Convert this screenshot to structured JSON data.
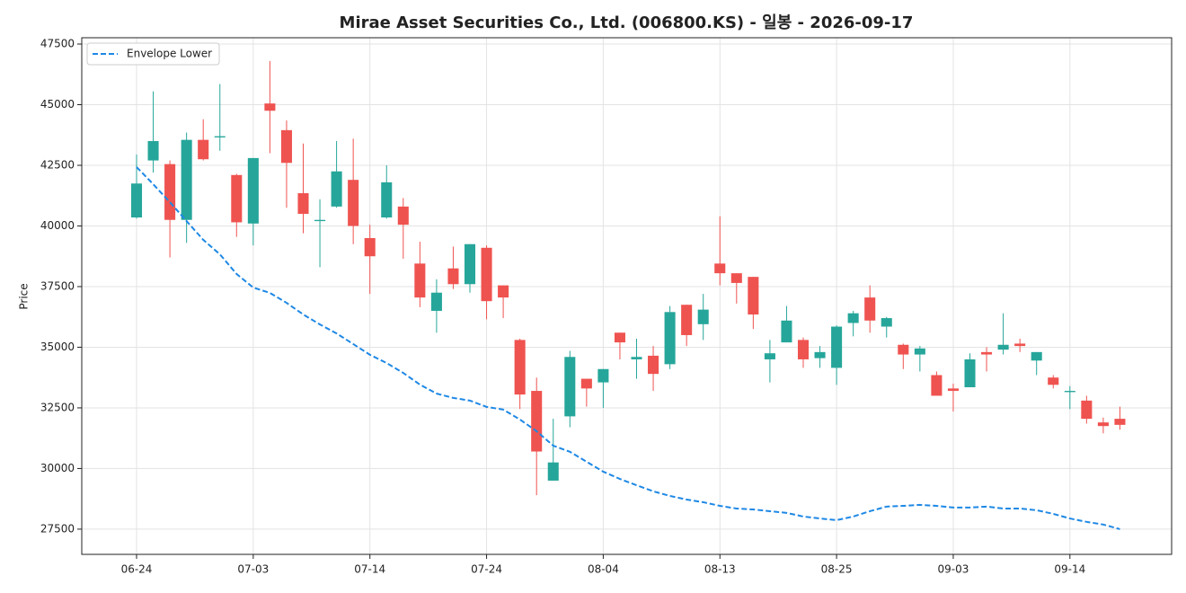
{
  "chart_data": {
    "type": "candlestick",
    "title": "Mirae Asset Securities Co., Ltd. (006800.KS) - 일봉 - 2026-09-17",
    "ylabel": "Price",
    "categories": [
      "06-24",
      null,
      null,
      null,
      null,
      null,
      null,
      "07-03",
      null,
      null,
      null,
      null,
      null,
      null,
      "07-14",
      null,
      null,
      null,
      null,
      null,
      null,
      "07-24",
      null,
      null,
      null,
      null,
      null,
      null,
      "08-04",
      null,
      null,
      null,
      null,
      null,
      null,
      "08-13",
      null,
      null,
      null,
      null,
      null,
      null,
      "08-25",
      null,
      null,
      null,
      null,
      null,
      null,
      "09-03",
      null,
      null,
      null,
      null,
      null,
      null,
      "09-14",
      null,
      null,
      null
    ],
    "open": [
      40350,
      42700,
      42550,
      40250,
      43550,
      43650,
      42100,
      40100,
      45050,
      43950,
      41350,
      40200,
      40800,
      41900,
      39500,
      40350,
      40800,
      38450,
      36500,
      38250,
      37600,
      39100,
      37550,
      35300,
      33200,
      29500,
      32150,
      33700,
      33550,
      35600,
      34500,
      34650,
      34300,
      36750,
      35950,
      38450,
      38050,
      37900,
      34500,
      35200,
      35300,
      34550,
      34150,
      36000,
      37050,
      35850,
      35100,
      34700,
      33850,
      33300,
      33350,
      34800,
      34900,
      35150,
      34450,
      33750,
      33150,
      32800,
      31900,
      32050
    ],
    "high": [
      42950,
      45550,
      42700,
      43850,
      44400,
      45850,
      42150,
      42800,
      46800,
      44350,
      43400,
      41100,
      43500,
      43600,
      40050,
      42500,
      41150,
      39350,
      37800,
      39150,
      39250,
      39200,
      37550,
      35350,
      33750,
      32050,
      34850,
      33700,
      34100,
      35600,
      35350,
      35050,
      36700,
      36750,
      37200,
      40400,
      38050,
      37900,
      35300,
      36700,
      35400,
      35050,
      35900,
      36500,
      37550,
      36250,
      35150,
      35050,
      34000,
      33500,
      34750,
      35000,
      36400,
      35350,
      34800,
      33850,
      33400,
      33000,
      32100,
      32550
    ],
    "low": [
      40300,
      42200,
      38700,
      39300,
      42700,
      43100,
      39550,
      39200,
      43000,
      40750,
      39700,
      38300,
      40750,
      39250,
      37200,
      40300,
      38650,
      36650,
      35600,
      37400,
      37250,
      36150,
      36200,
      32450,
      28900,
      29500,
      31700,
      32550,
      32500,
      34500,
      33700,
      33200,
      34100,
      35050,
      35300,
      37550,
      36800,
      35750,
      33550,
      35200,
      34150,
      34150,
      33450,
      35450,
      35600,
      35400,
      34100,
      34000,
      33000,
      32350,
      33350,
      34000,
      34700,
      34800,
      33850,
      33300,
      32450,
      31850,
      31450,
      31600
    ],
    "close": [
      41750,
      43500,
      40250,
      43550,
      42750,
      43700,
      40150,
      42800,
      44750,
      42600,
      40500,
      40250,
      42250,
      40000,
      38750,
      41800,
      40050,
      37050,
      37250,
      37600,
      39250,
      36900,
      37050,
      33050,
      30700,
      30250,
      34600,
      33300,
      34100,
      35200,
      34600,
      33900,
      36450,
      35500,
      36550,
      38050,
      37650,
      36350,
      34750,
      36100,
      34500,
      34800,
      35850,
      36400,
      36100,
      36200,
      34700,
      34950,
      33000,
      33200,
      34500,
      34700,
      35100,
      35050,
      34800,
      33450,
      33200,
      32050,
      31750,
      31800
    ],
    "up_color": "#26a69a",
    "down_color": "#ef5350",
    "series": [
      {
        "name": "Envelope Lower",
        "color": "#1e88e5",
        "style": "dashed",
        "values": [
          42430,
          41720,
          40980,
          40200,
          39430,
          38830,
          38020,
          37460,
          37240,
          36830,
          36350,
          35940,
          35570,
          35130,
          34690,
          34350,
          33940,
          33460,
          33090,
          32910,
          32800,
          32540,
          32430,
          32020,
          31540,
          30940,
          30690,
          30280,
          29870,
          29570,
          29310,
          29060,
          28870,
          28720,
          28610,
          28460,
          28350,
          28310,
          28240,
          28170,
          28020,
          27940,
          27870,
          28020,
          28240,
          28430,
          28460,
          28500,
          28460,
          28390,
          28390,
          28430,
          28350,
          28350,
          28280,
          28130,
          27940,
          27800,
          27690,
          27500
        ]
      }
    ],
    "ylim": [
      26460,
      47760
    ],
    "yticks": [
      27500,
      30000,
      32500,
      35000,
      37500,
      40000,
      42500,
      45000,
      47500
    ],
    "grid": true,
    "legend": "upper left"
  }
}
